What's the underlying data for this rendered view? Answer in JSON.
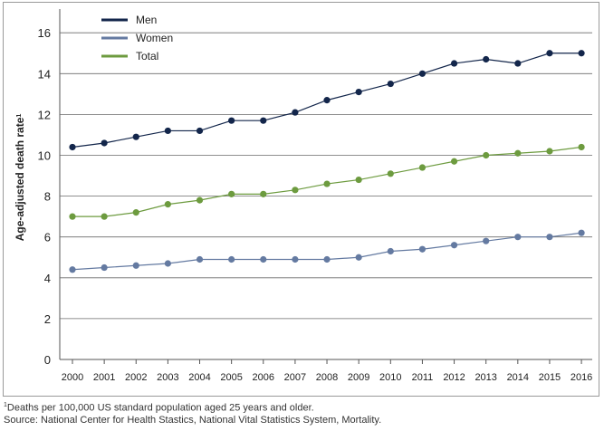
{
  "chart_data": {
    "type": "line",
    "ylabel": "Age-adjusted death rate",
    "ylabel_sup": "1",
    "xlabel": "",
    "ylim": [
      0,
      17
    ],
    "yticks": [
      0,
      2,
      4,
      6,
      8,
      10,
      12,
      14,
      16
    ],
    "grid": true,
    "legend_position": "top-left",
    "categories": [
      "2000",
      "2001",
      "2002",
      "2003",
      "2004",
      "2005",
      "2006",
      "2007",
      "2008",
      "2009",
      "2010",
      "2011",
      "2012",
      "2013",
      "2014",
      "2015",
      "2016"
    ],
    "series": [
      {
        "name": "Men",
        "color": "#13264b",
        "values": [
          10.4,
          10.6,
          10.9,
          11.2,
          11.2,
          11.7,
          11.7,
          12.1,
          12.7,
          13.1,
          13.5,
          14.0,
          14.5,
          14.7,
          14.5,
          15.0,
          15.0
        ]
      },
      {
        "name": "Women",
        "color": "#647aa1",
        "values": [
          4.4,
          4.5,
          4.6,
          4.7,
          4.9,
          4.9,
          4.9,
          4.9,
          4.9,
          5.0,
          5.3,
          5.4,
          5.6,
          5.8,
          6.0,
          6.0,
          6.2
        ]
      },
      {
        "name": "Total",
        "color": "#6d9b3f",
        "values": [
          7.0,
          7.0,
          7.2,
          7.6,
          7.8,
          8.1,
          8.1,
          8.3,
          8.6,
          8.8,
          9.1,
          9.4,
          9.7,
          10.0,
          10.1,
          10.2,
          10.4
        ]
      }
    ]
  },
  "footnotes": {
    "line1_sup": "1",
    "line1": "Deaths per 100,000 US standard population aged 25 years and older.",
    "line2": "Source: National Center for Health Stastics, National Vital Statistics System, Mortality."
  }
}
